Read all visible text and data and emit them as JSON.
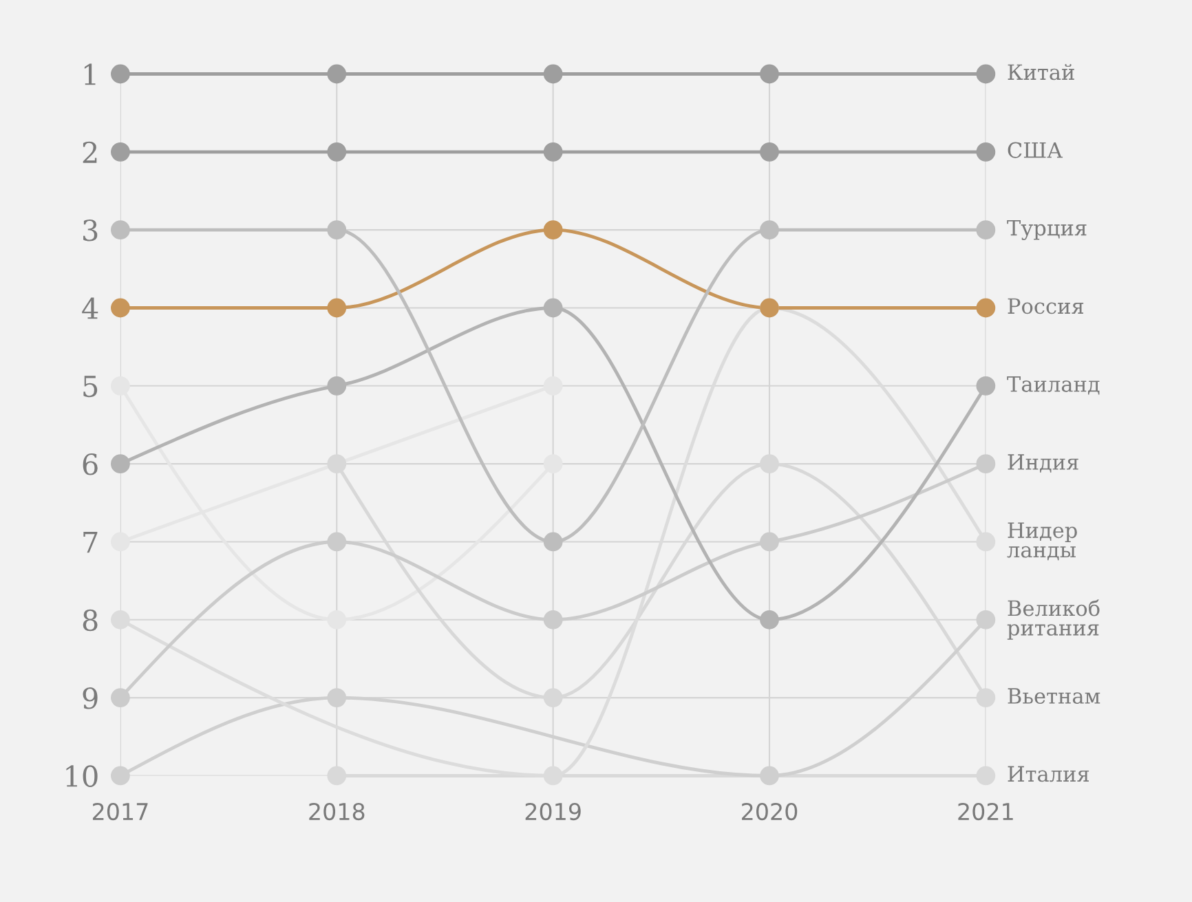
{
  "chart_data": {
    "type": "line",
    "x": [
      2017,
      2018,
      2019,
      2020,
      2021
    ],
    "xlim": [
      2017,
      2021
    ],
    "xticks": [
      2017,
      2018,
      2019,
      2020,
      2021
    ],
    "ylim": [
      10,
      1
    ],
    "yticks": [
      1,
      2,
      3,
      4,
      5,
      6,
      7,
      8,
      9,
      10
    ],
    "grid": true,
    "marker": "circle",
    "line_style": "solid",
    "legend": false,
    "series": [
      {
        "name": "Китай",
        "color": "#9e9e9e",
        "values": [
          1,
          1,
          1,
          1,
          1
        ]
      },
      {
        "name": "США",
        "color": "#9e9e9e",
        "values": [
          2,
          2,
          2,
          2,
          2
        ]
      },
      {
        "name": "Турция",
        "color": "#bdbdbd",
        "values": [
          3,
          3,
          7,
          3,
          3
        ]
      },
      {
        "name": "Россия",
        "color": "#c8965a",
        "values": [
          4,
          4,
          3,
          4,
          4
        ]
      },
      {
        "name": "Таиланд",
        "color": "#b3b3b3",
        "values": [
          6,
          5,
          4,
          8,
          5
        ]
      },
      {
        "name": "Индия",
        "color": "#cbcbcb",
        "values": [
          9,
          7,
          8,
          7,
          6
        ]
      },
      {
        "name": "Нидер\nланды",
        "color": "#dcdcdc",
        "values": [
          8,
          null,
          10,
          4,
          7
        ]
      },
      {
        "name": "Великоб\nритания",
        "color": "#cfcfcf",
        "values": [
          10,
          9,
          null,
          10,
          8
        ]
      },
      {
        "name": "Вьетнам",
        "color": "#d8d8d8",
        "values": [
          null,
          6,
          9,
          6,
          9
        ]
      },
      {
        "name": "Италия",
        "color": "#d9d9d9",
        "values": [
          null,
          10,
          null,
          null,
          10
        ]
      },
      {
        "color": "#e6e6e6",
        "values": [
          5,
          8,
          6,
          null,
          null
        ]
      },
      {
        "color": "#e6e6e6",
        "values": [
          7,
          null,
          5,
          null,
          null
        ]
      }
    ]
  }
}
